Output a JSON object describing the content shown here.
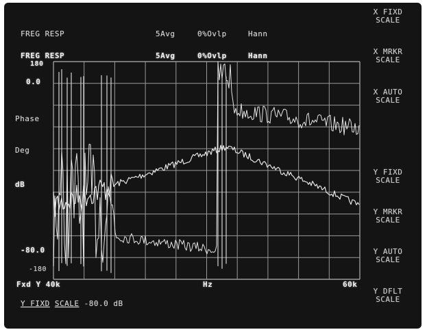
{
  "header": {
    "line1": {
      "title": "FREG RESP",
      "avg": "5Avg",
      "overlap": "0%Ovlp",
      "window": "Hann"
    },
    "line2": {
      "title": "FREG RESP",
      "avg": "5Avg",
      "overlap": "0%Ovlp",
      "window": "Hann"
    }
  },
  "y_axis": {
    "top": "180",
    "ref": "0.0",
    "phase_label": "Phase",
    "deg_label": "Deg",
    "db_label": "dB",
    "lower": "-80.0",
    "bottom": "-180"
  },
  "x_axis": {
    "start": "Fxd Y 40k",
    "unit": "Hz",
    "end": "60k"
  },
  "status_line": {
    "text1": "Y FIXD",
    "text2": "SCALE",
    "value": "-80.0 dB"
  },
  "softkeys": [
    {
      "line1": "X FIXD",
      "line2": "SCALE"
    },
    {
      "line1": "X MRKR",
      "line2": "SCALE"
    },
    {
      "line1": "X AUTO",
      "line2": "SCALE"
    },
    {
      "line1": "Y FIXD",
      "line2": "SCALE"
    },
    {
      "line1": "Y MRKR",
      "line2": "SCALE"
    },
    {
      "line1": "Y AUTO",
      "line2": "SCALE"
    },
    {
      "line1": "Y DFLT",
      "line2": "SCALE"
    }
  ],
  "colors": {
    "screen_bg": "#141414",
    "trace": "#e6e6e6",
    "grid": "#9a9a9a",
    "text": "#d7d7d7"
  }
}
